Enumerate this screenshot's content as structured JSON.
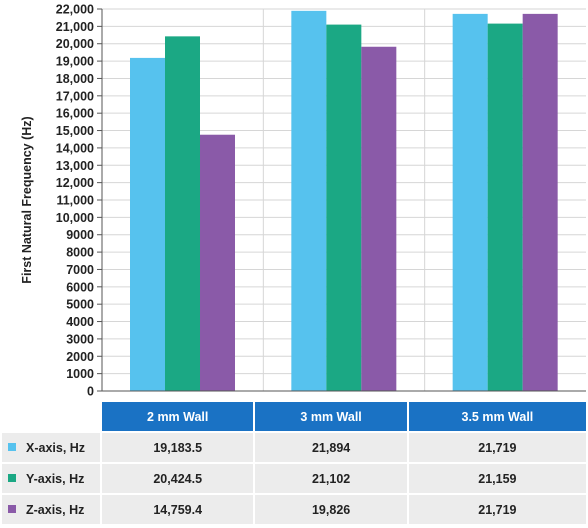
{
  "chart_data": {
    "type": "bar",
    "title": "",
    "xlabel": "",
    "ylabel": "First Natural Frequency (Hz)",
    "ylim": [
      0,
      22000
    ],
    "ytick_step": 1000,
    "y_ticks": [
      "0",
      "1000",
      "2000",
      "3000",
      "4000",
      "5000",
      "6000",
      "7000",
      "8000",
      "9000",
      "10,000",
      "11,000",
      "12,000",
      "13,000",
      "14,000",
      "15,000",
      "16,000",
      "17,000",
      "18,000",
      "19,000",
      "20,000",
      "21,000",
      "22,000"
    ],
    "grid": "horizontal",
    "categories": [
      "2 mm Wall",
      "3 mm Wall",
      "3.5 mm Wall"
    ],
    "series": [
      {
        "name": "X-axis, Hz",
        "color": "#56c2ee",
        "values": [
          19183.5,
          21894,
          21719
        ],
        "labels": [
          "19,183.5",
          "21,894",
          "21,719"
        ]
      },
      {
        "name": "Y-axis, Hz",
        "color": "#1ba884",
        "values": [
          20424.5,
          21102,
          21159
        ],
        "labels": [
          "20,424.5",
          "21,102",
          "21,159"
        ]
      },
      {
        "name": "Z-axis, Hz",
        "color": "#8a5aa8",
        "values": [
          14759.4,
          19826,
          21719
        ],
        "labels": [
          "14,759.4",
          "19,826",
          "21,719"
        ]
      }
    ],
    "table_header_color": "#1a72c4",
    "legend": "table-below"
  }
}
